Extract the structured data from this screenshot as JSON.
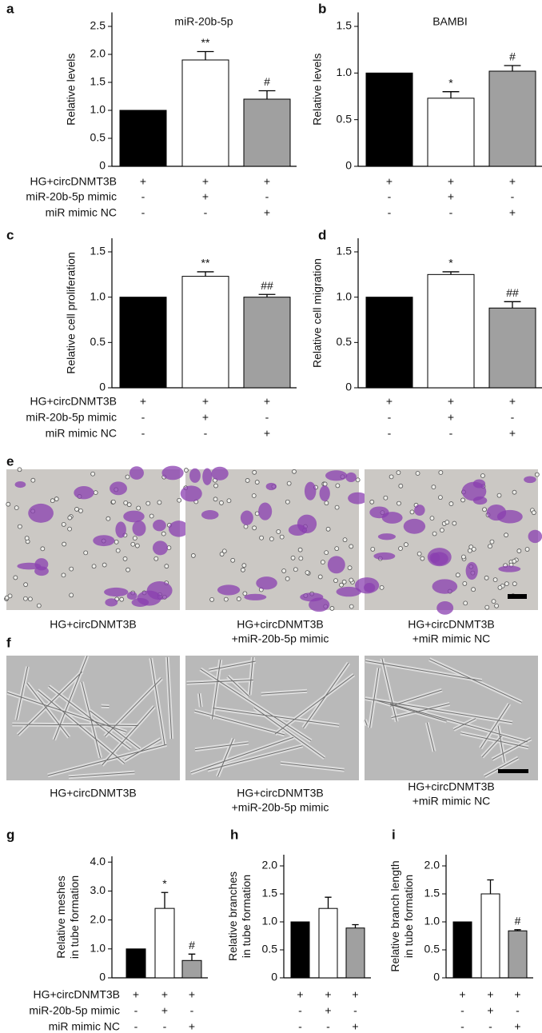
{
  "chart_data": [
    {
      "panel": "a",
      "type": "bar",
      "title": "miR-20b-5p",
      "y_label": [
        "Relative levels"
      ],
      "values": [
        1.0,
        1.9,
        1.2
      ],
      "errors": [
        0,
        0.15,
        0.15
      ],
      "annotations": [
        null,
        "**",
        "#"
      ],
      "colors": [
        "#000000",
        "#ffffff",
        "#a0a0a0"
      ],
      "ylim": [
        0,
        2.75
      ],
      "yticks": [
        0,
        0.5,
        {
          "value": 1,
          "label": "1.0"
        },
        1.5,
        {
          "value": 2,
          "label": "2.0"
        },
        2.5
      ],
      "treatments": [
        {
          "name": "HG+circDNMT3B",
          "signs": [
            "+",
            "+",
            "+"
          ]
        },
        {
          "name": "miR-20b-5p mimic",
          "signs": [
            "-",
            "+",
            "-"
          ]
        },
        {
          "name": "miR mimic NC",
          "signs": [
            "-",
            "-",
            "+"
          ]
        }
      ]
    },
    {
      "panel": "b",
      "type": "bar",
      "title": "BAMBI",
      "y_label": [
        "Relative levels"
      ],
      "values": [
        1.0,
        0.73,
        1.02
      ],
      "errors": [
        0,
        0.07,
        0.06
      ],
      "annotations": [
        null,
        "*",
        "#"
      ],
      "colors": [
        "#000000",
        "#ffffff",
        "#a0a0a0"
      ],
      "ylim": [
        0,
        1.65
      ],
      "yticks": [
        0,
        0.5,
        {
          "value": 1,
          "label": "1.0"
        },
        1.5
      ],
      "treatments": [
        {
          "signs": [
            "+",
            "+",
            "+"
          ]
        },
        {
          "signs": [
            "-",
            "+",
            "-"
          ]
        },
        {
          "signs": [
            "-",
            "-",
            "+"
          ]
        }
      ]
    },
    {
      "panel": "c",
      "type": "bar",
      "y_label": [
        "Relative cell proliferation"
      ],
      "values": [
        1.0,
        1.23,
        1.0
      ],
      "errors": [
        0,
        0.05,
        0.03
      ],
      "annotations": [
        null,
        "**",
        "##"
      ],
      "colors": [
        "#000000",
        "#ffffff",
        "#a0a0a0"
      ],
      "ylim": [
        0,
        1.65
      ],
      "yticks": [
        0,
        0.5,
        {
          "value": 1,
          "label": "1.0"
        },
        1.5
      ],
      "treatments": [
        {
          "name": "HG+circDNMT3B",
          "signs": [
            "+",
            "+",
            "+"
          ]
        },
        {
          "name": "miR-20b-5p mimic",
          "signs": [
            "-",
            "+",
            "-"
          ]
        },
        {
          "name": "miR mimic NC",
          "signs": [
            "-",
            "-",
            "+"
          ]
        }
      ]
    },
    {
      "panel": "d",
      "type": "bar",
      "y_label": [
        "Relative cell migration"
      ],
      "values": [
        1.0,
        1.25,
        0.88
      ],
      "errors": [
        0,
        0.03,
        0.07
      ],
      "annotations": [
        null,
        "*",
        "##"
      ],
      "colors": [
        "#000000",
        "#ffffff",
        "#a0a0a0"
      ],
      "ylim": [
        0,
        1.65
      ],
      "yticks": [
        0,
        0.5,
        {
          "value": 1,
          "label": "1.0"
        },
        1.5
      ],
      "treatments": [
        {
          "signs": [
            "+",
            "+",
            "+"
          ]
        },
        {
          "signs": [
            "-",
            "+",
            "-"
          ]
        },
        {
          "signs": [
            "-",
            "-",
            "+"
          ]
        }
      ]
    },
    {
      "panel": "g",
      "type": "bar",
      "y_label": [
        "Relative meshes",
        "in tube formation"
      ],
      "values": [
        1.0,
        2.4,
        0.6
      ],
      "errors": [
        0,
        0.55,
        0.22
      ],
      "annotations": [
        null,
        "*",
        "#"
      ],
      "colors": [
        "#000000",
        "#ffffff",
        "#a0a0a0"
      ],
      "ylim": [
        0,
        4.2
      ],
      "yticks": [
        0,
        {
          "value": 1,
          "label": "1.0"
        },
        {
          "value": 2,
          "label": "2.0"
        },
        {
          "value": 3,
          "label": "3.0"
        },
        {
          "value": 4,
          "label": "4.0"
        }
      ],
      "treatments": [
        {
          "name": "HG+circDNMT3B",
          "signs": [
            "+",
            "+",
            "+"
          ]
        },
        {
          "name": "miR-20b-5p mimic",
          "signs": [
            "-",
            "+",
            "-"
          ]
        },
        {
          "name": "miR mimic NC",
          "signs": [
            "-",
            "-",
            "+"
          ]
        }
      ]
    },
    {
      "panel": "h",
      "type": "bar",
      "y_label": [
        "Relative branches",
        "in tube formation"
      ],
      "values": [
        1.0,
        1.24,
        0.89
      ],
      "errors": [
        0,
        0.2,
        0.06
      ],
      "annotations": [
        null,
        null,
        null
      ],
      "colors": [
        "#000000",
        "#ffffff",
        "#a0a0a0"
      ],
      "ylim": [
        0,
        2.2
      ],
      "yticks": [
        0,
        0.5,
        {
          "value": 1,
          "label": "1.0"
        },
        1.5,
        {
          "value": 2,
          "label": "2.0"
        }
      ],
      "treatments": [
        {
          "signs": [
            "+",
            "+",
            "+"
          ]
        },
        {
          "signs": [
            "-",
            "+",
            "-"
          ]
        },
        {
          "signs": [
            "-",
            "-",
            "+"
          ]
        }
      ]
    },
    {
      "panel": "i",
      "type": "bar",
      "y_label": [
        "Relative branch length",
        "in tube formation"
      ],
      "values": [
        1.0,
        1.5,
        0.84
      ],
      "errors": [
        0,
        0.25,
        0.02
      ],
      "annotations": [
        null,
        null,
        "#"
      ],
      "colors": [
        "#000000",
        "#ffffff",
        "#a0a0a0"
      ],
      "ylim": [
        0,
        2.2
      ],
      "yticks": [
        0,
        0.5,
        {
          "value": 1,
          "label": "1.0"
        },
        1.5,
        {
          "value": 2,
          "label": "2.0"
        }
      ],
      "treatments": [
        {
          "signs": [
            "+",
            "+",
            "+"
          ]
        },
        {
          "signs": [
            "-",
            "+",
            "-"
          ]
        },
        {
          "signs": [
            "-",
            "-",
            "+"
          ]
        }
      ]
    }
  ],
  "images": [
    {
      "panel": "e",
      "captions": [
        [
          "HG+circDNMT3B"
        ],
        [
          "HG+circDNMT3B",
          "+miR-20b-5p mimic"
        ],
        [
          "HG+circDNMT3B",
          "+miR mimic NC"
        ]
      ]
    },
    {
      "panel": "f",
      "captions": [
        [
          "HG+circDNMT3B"
        ],
        [
          "HG+circDNMT3B",
          "+miR-20b-5p mimic"
        ],
        [
          "HG+circDNMT3B",
          "+miR mimic NC"
        ]
      ]
    }
  ]
}
